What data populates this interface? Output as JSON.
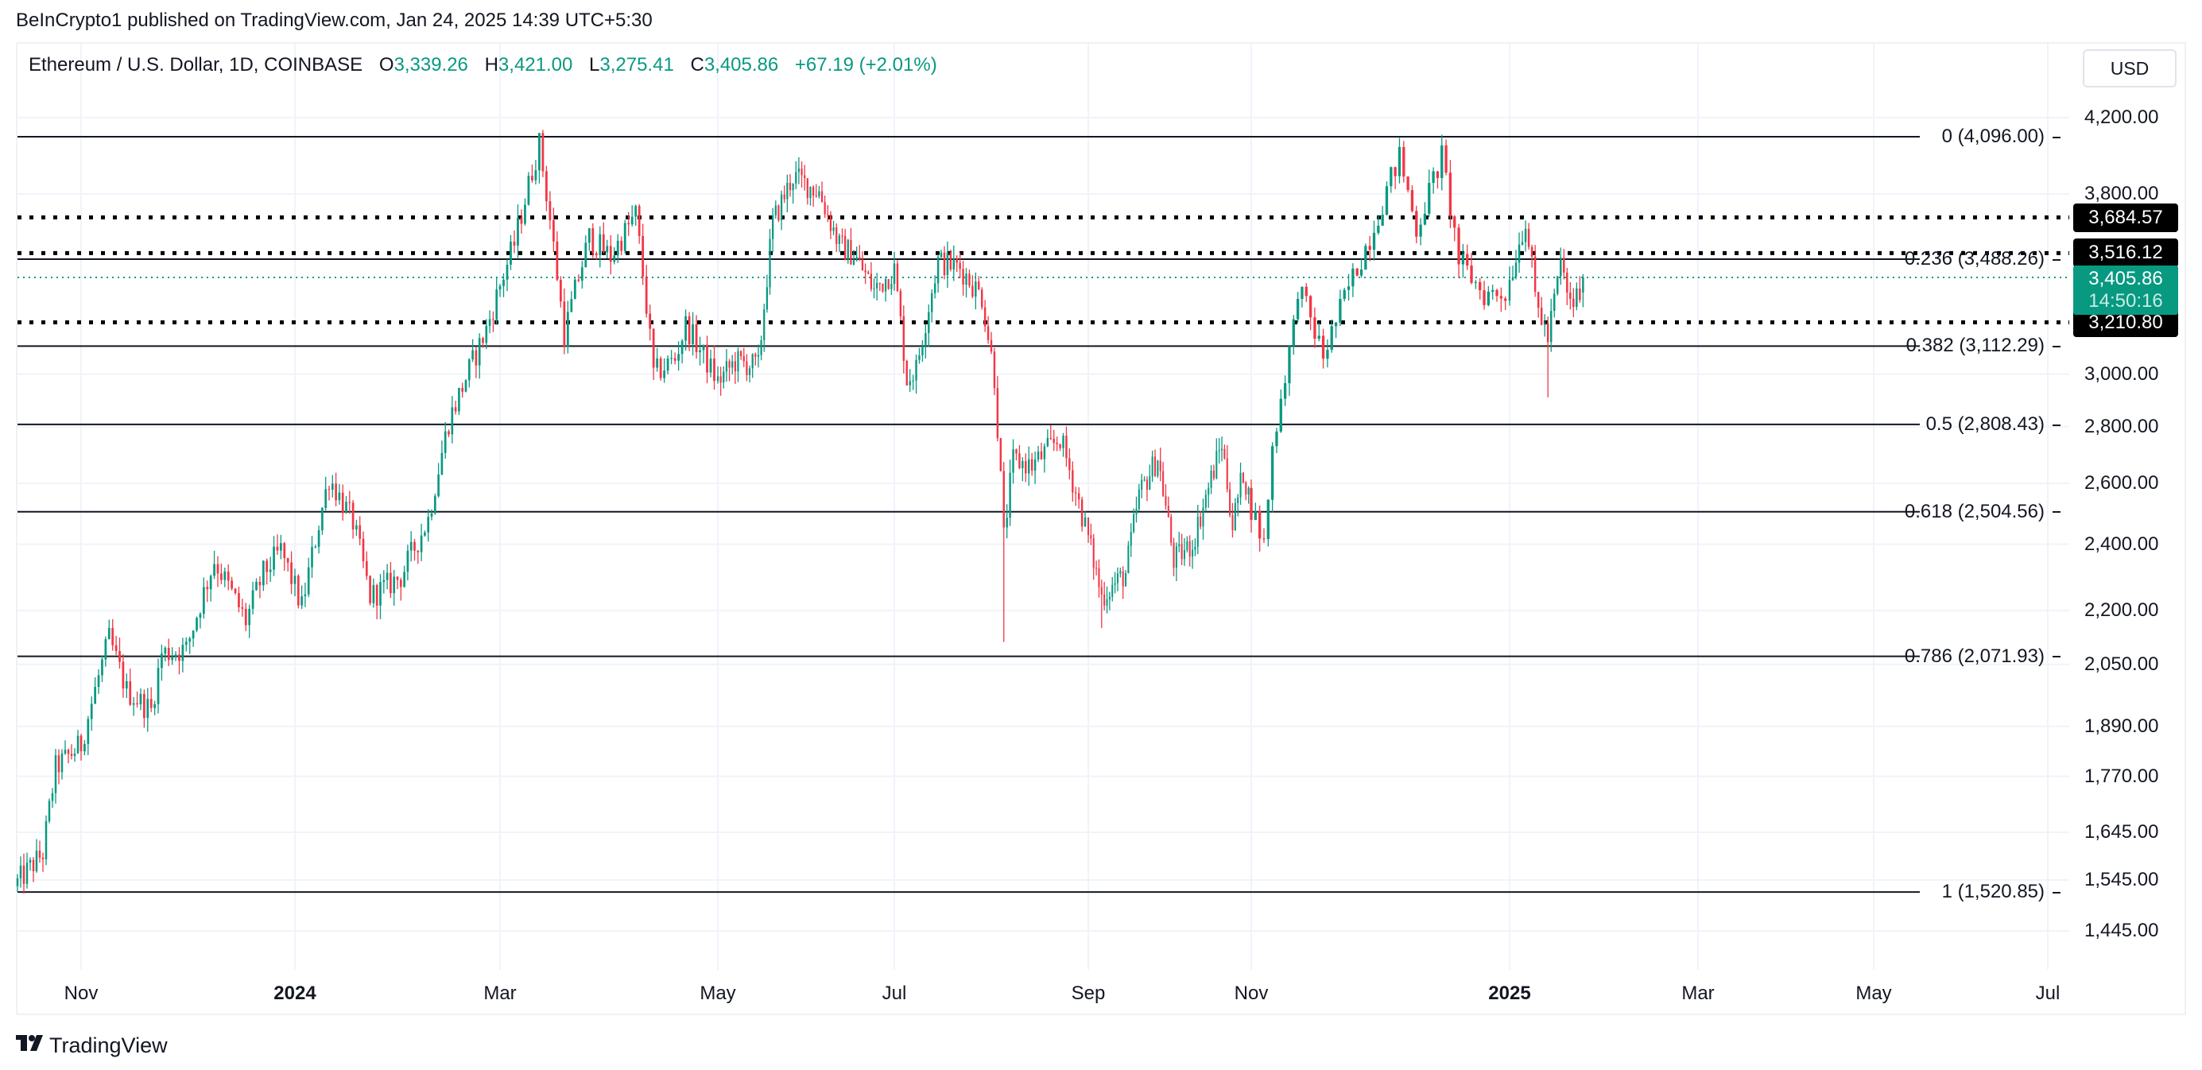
{
  "header": {
    "published": "BeInCrypto1 published on TradingView.com, Jan 24, 2025 14:39 UTC+5:30"
  },
  "legend": {
    "symbol": "Ethereum / U.S. Dollar, 1D, COINBASE",
    "o_label": "O",
    "o": "3,339.26",
    "h_label": "H",
    "h": "3,421.00",
    "l_label": "L",
    "l": "3,275.41",
    "c_label": "C",
    "c": "3,405.86",
    "change": "+67.19 (+2.01%)"
  },
  "price_axis": {
    "currency": "USD",
    "ticks": [
      {
        "label": "4,200.00",
        "price": 4200
      },
      {
        "label": "3,800.00",
        "price": 3800
      },
      {
        "label": "3,000.00",
        "price": 3000
      },
      {
        "label": "2,800.00",
        "price": 2800
      },
      {
        "label": "2,600.00",
        "price": 2600
      },
      {
        "label": "2,400.00",
        "price": 2400
      },
      {
        "label": "2,200.00",
        "price": 2200
      },
      {
        "label": "2,050.00",
        "price": 2050
      },
      {
        "label": "1,890.00",
        "price": 1890
      },
      {
        "label": "1,770.00",
        "price": 1770
      },
      {
        "label": "1,645.00",
        "price": 1645
      },
      {
        "label": "1,545.00",
        "price": 1545
      },
      {
        "label": "1,445.00",
        "price": 1445
      }
    ]
  },
  "time_axis": {
    "ticks": [
      {
        "label": "Nov",
        "date": "2023-11-01",
        "bold": false
      },
      {
        "label": "2024",
        "date": "2024-01-01",
        "bold": true
      },
      {
        "label": "Mar",
        "date": "2024-03-01",
        "bold": false
      },
      {
        "label": "May",
        "date": "2024-05-01",
        "bold": false
      },
      {
        "label": "Jul",
        "date": "2024-07-01",
        "bold": false
      },
      {
        "label": "Sep",
        "date": "2024-09-01",
        "bold": false
      },
      {
        "label": "Nov",
        "date": "2024-11-01",
        "bold": false
      },
      {
        "label": "2025",
        "date": "2025-01-01",
        "bold": true
      },
      {
        "label": "Mar",
        "date": "2025-03-01",
        "bold": false
      },
      {
        "label": "May",
        "date": "2025-05-01",
        "bold": false
      },
      {
        "label": "Jul",
        "date": "2025-07-01",
        "bold": false
      }
    ]
  },
  "fib_levels": [
    {
      "label": "0 (4,096.00)",
      "price": 4096.0
    },
    {
      "label": "0.236 (3,488.26)",
      "price": 3488.26
    },
    {
      "label": "0.382 (3,112.29)",
      "price": 3112.29
    },
    {
      "label": "0.5 (2,808.43)",
      "price": 2808.43
    },
    {
      "label": "0.618 (2,504.56)",
      "price": 2504.56
    },
    {
      "label": "0.786 (2,071.93)",
      "price": 2071.93
    },
    {
      "label": "1 (1,520.85)",
      "price": 1520.85
    }
  ],
  "horizontal_levels": [
    {
      "label": "3,684.57",
      "price": 3684.57
    },
    {
      "label": "3,516.12",
      "price": 3516.12
    },
    {
      "label": "3,210.80",
      "price": 3210.8
    }
  ],
  "last_price": {
    "value": "3,405.86",
    "price": 3405.86,
    "countdown": "14:50:16"
  },
  "colors": {
    "up": "#089981",
    "down": "#f23645",
    "fib": "#131722",
    "level": "#000000",
    "grid": "#f0f3fa"
  },
  "branding": {
    "logo_text": "TradingView",
    "logo_mark": "17"
  },
  "chart_data": {
    "type": "candlestick",
    "title": "Ethereum / U.S. Dollar, 1D, COINBASE",
    "xlabel": "",
    "ylabel": "USD",
    "y_scale": "log",
    "ylim": [
      1400,
      4300
    ],
    "xlim": [
      "2023-10-12",
      "2025-07-15"
    ],
    "grid": true,
    "close_path": [
      [
        "2023-10-12",
        1540
      ],
      [
        "2023-10-20",
        1600
      ],
      [
        "2023-10-24",
        1790
      ],
      [
        "2023-11-01",
        1845
      ],
      [
        "2023-11-09",
        2120
      ],
      [
        "2023-11-14",
        1980
      ],
      [
        "2023-11-21",
        1930
      ],
      [
        "2023-11-24",
        2080
      ],
      [
        "2023-12-01",
        2090
      ],
      [
        "2023-12-09",
        2350
      ],
      [
        "2023-12-18",
        2170
      ],
      [
        "2023-12-23",
        2310
      ],
      [
        "2023-12-28",
        2380
      ],
      [
        "2024-01-03",
        2210
      ],
      [
        "2024-01-11",
        2620
      ],
      [
        "2024-01-18",
        2470
      ],
      [
        "2024-01-23",
        2240
      ],
      [
        "2024-02-01",
        2300
      ],
      [
        "2024-02-09",
        2480
      ],
      [
        "2024-02-15",
        2820
      ],
      [
        "2024-02-26",
        3180
      ],
      [
        "2024-03-05",
        3560
      ],
      [
        "2024-03-12",
        4060
      ],
      [
        "2024-03-19",
        3160
      ],
      [
        "2024-03-26",
        3590
      ],
      [
        "2024-04-01",
        3500
      ],
      [
        "2024-04-08",
        3700
      ],
      [
        "2024-04-13",
        3000
      ],
      [
        "2024-04-19",
        3060
      ],
      [
        "2024-04-22",
        3200
      ],
      [
        "2024-05-01",
        2970
      ],
      [
        "2024-05-07",
        3050
      ],
      [
        "2024-05-15",
        3030
      ],
      [
        "2024-05-20",
        3660
      ],
      [
        "2024-05-27",
        3890
      ],
      [
        "2024-06-05",
        3810
      ],
      [
        "2024-06-12",
        3550
      ],
      [
        "2024-06-17",
        3510
      ],
      [
        "2024-06-24",
        3350
      ],
      [
        "2024-07-01",
        3440
      ],
      [
        "2024-07-05",
        2980
      ],
      [
        "2024-07-08",
        3020
      ],
      [
        "2024-07-15",
        3480
      ],
      [
        "2024-07-22",
        3450
      ],
      [
        "2024-07-29",
        3320
      ],
      [
        "2024-08-02",
        2990
      ],
      [
        "2024-08-05",
        2420
      ],
      [
        "2024-08-08",
        2680
      ],
      [
        "2024-08-14",
        2660
      ],
      [
        "2024-08-23",
        2760
      ],
      [
        "2024-09-01",
        2420
      ],
      [
        "2024-09-06",
        2240
      ],
      [
        "2024-09-15",
        2310
      ],
      [
        "2024-09-20",
        2560
      ],
      [
        "2024-09-27",
        2690
      ],
      [
        "2024-10-03",
        2350
      ],
      [
        "2024-10-10",
        2400
      ],
      [
        "2024-10-21",
        2740
      ],
      [
        "2024-10-25",
        2460
      ],
      [
        "2024-10-29",
        2640
      ],
      [
        "2024-11-04",
        2400
      ],
      [
        "2024-11-06",
        2720
      ],
      [
        "2024-11-11",
        3190
      ],
      [
        "2024-11-12",
        3370
      ],
      [
        "2024-11-18",
        3070
      ],
      [
        "2024-11-24",
        3360
      ],
      [
        "2024-11-29",
        3590
      ],
      [
        "2024-12-06",
        3990
      ],
      [
        "2024-12-10",
        3630
      ],
      [
        "2024-12-16",
        3990
      ],
      [
        "2024-12-20",
        3480
      ],
      [
        "2024-12-26",
        3330
      ],
      [
        "2024-12-31",
        3340
      ],
      [
        "2025-01-06",
        3680
      ],
      [
        "2025-01-09",
        3320
      ],
      [
        "2025-01-13",
        3140
      ],
      [
        "2025-01-17",
        3470
      ],
      [
        "2025-01-20",
        3280
      ],
      [
        "2025-01-23",
        3339.26
      ]
    ],
    "wick_extremes": [
      {
        "date": "2023-10-12",
        "low": 1520.85
      },
      {
        "date": "2024-03-12",
        "high": 4093
      },
      {
        "date": "2024-08-05",
        "low": 2111
      },
      {
        "date": "2024-09-06",
        "low": 2150
      },
      {
        "date": "2024-12-16",
        "high": 4107
      },
      {
        "date": "2025-01-13",
        "low": 2910
      }
    ],
    "last_candle": {
      "date": "2025-01-24",
      "open": 3339.26,
      "high": 3421.0,
      "low": 3275.41,
      "close": 3405.86
    }
  }
}
